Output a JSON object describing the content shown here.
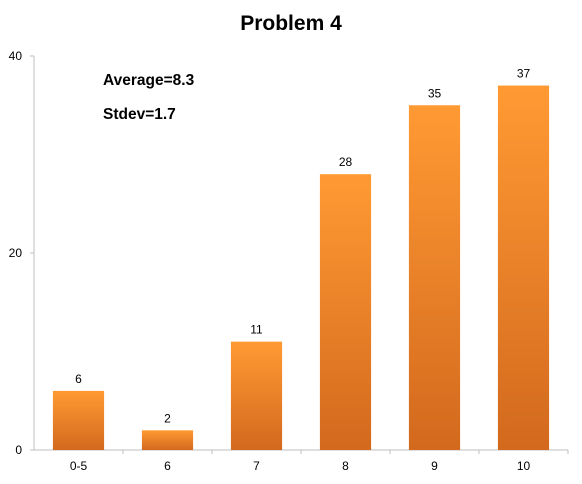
{
  "chart_data": {
    "type": "bar",
    "title": "Problem 4",
    "xlabel": "",
    "ylabel": "",
    "categories": [
      "0-5",
      "6",
      "7",
      "8",
      "9",
      "10"
    ],
    "values": [
      6,
      2,
      11,
      28,
      35,
      37
    ],
    "ylim": [
      0,
      40
    ],
    "yticks": [
      0,
      20,
      40
    ],
    "grid": false,
    "legend": "none",
    "data_labels": true,
    "annotations": [
      "Average=8.3",
      "Stdev=1.7"
    ],
    "colors": {
      "bar_top": "#FF9A33",
      "bar_bottom": "#D2691E",
      "axis": "#BFBFBF",
      "text": "#000000"
    }
  }
}
